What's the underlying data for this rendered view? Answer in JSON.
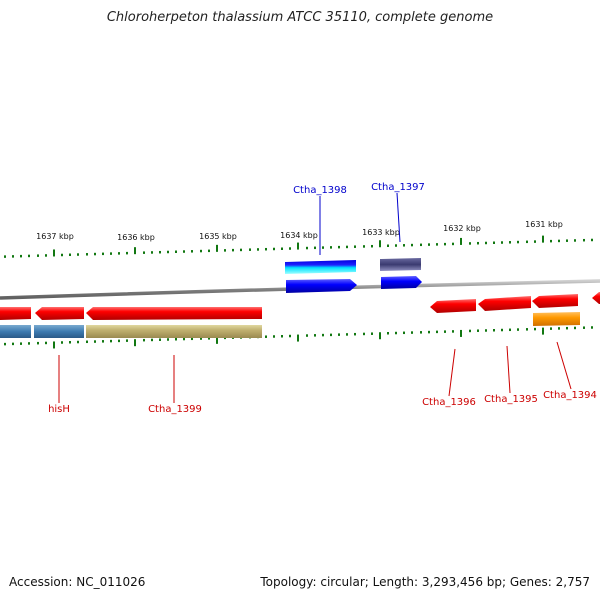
{
  "title": "Chloroherpeton thalassium ATCC 35110, complete genome",
  "accession": "Accession: NC_011026",
  "summary": "Topology: circular; Length: 3,293,456 bp; Genes: 2,757",
  "scale_labels": [
    "1637 kbp",
    "1636 kbp",
    "1635 kbp",
    "1634 kbp",
    "1633 kbp",
    "1632 kbp",
    "1631 kbp"
  ],
  "gene_labels": {
    "ctha_1398": "Ctha_1398",
    "ctha_1397": "Ctha_1397",
    "hisH": "hisH",
    "ctha_1399": "Ctha_1399",
    "ctha_1396": "Ctha_1396",
    "ctha_1395": "Ctha_1395",
    "ctha_1394": "Ctha_1394"
  },
  "colors": {
    "forward_label": "#0000cc",
    "reverse_label": "#cc0000",
    "tick": "#117711",
    "backbone": "#808080"
  }
}
